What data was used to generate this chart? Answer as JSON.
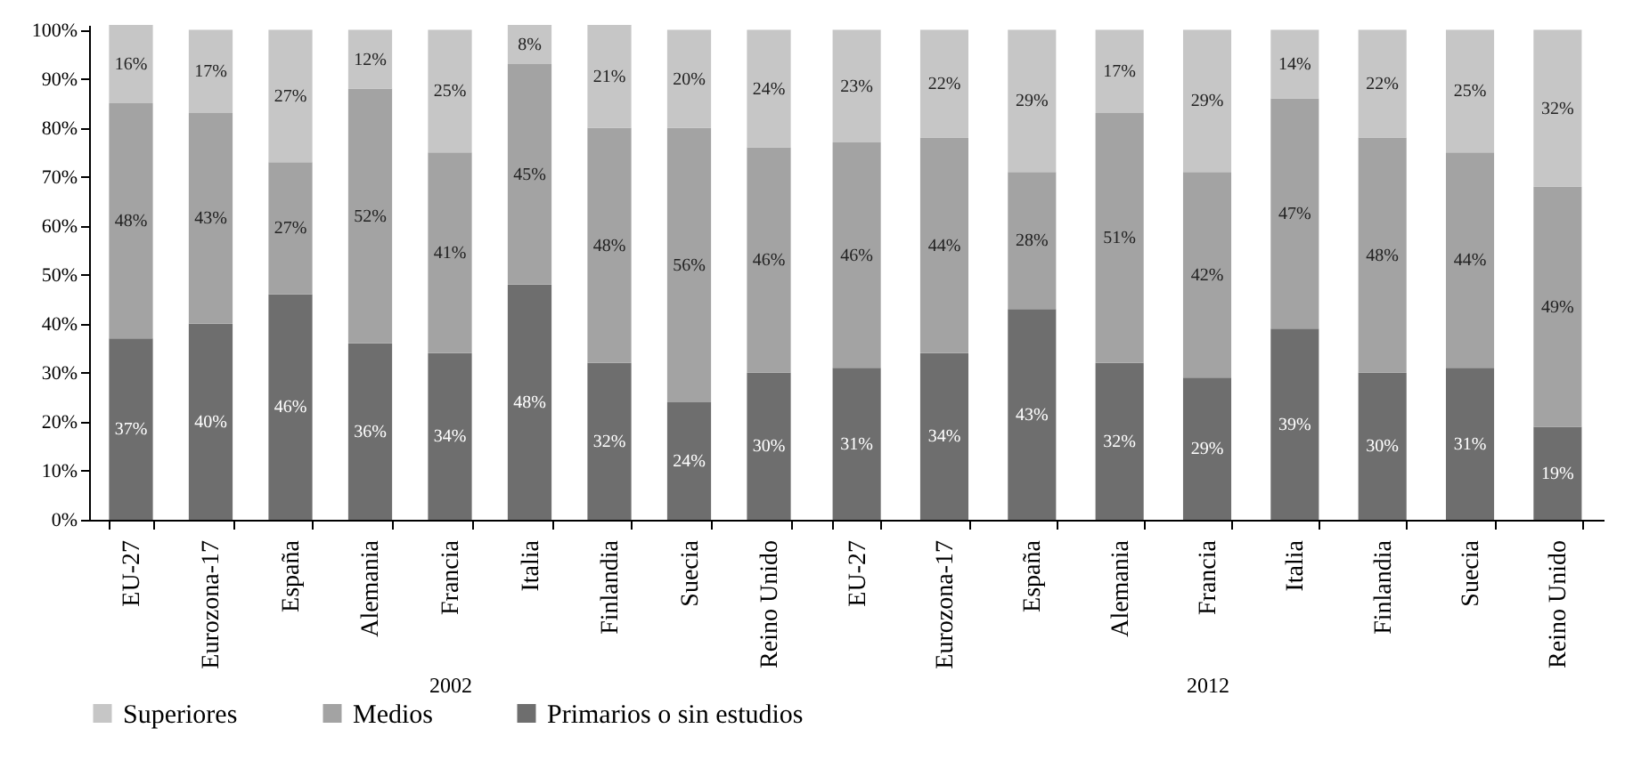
{
  "chart_data": [
    {
      "type": "bar",
      "stacked": true,
      "xlabel": "2002",
      "categories": [
        "EU-27",
        "Eurozona-17",
        "España",
        "Alemania",
        "Francia",
        "Italia",
        "Finlandia",
        "Suecia",
        "Reino Unido"
      ],
      "series": [
        {
          "name": "Primarios o sin estudios",
          "color": "#6e6e6e",
          "values": [
            37,
            40,
            46,
            36,
            34,
            48,
            32,
            24,
            30
          ],
          "value_labels": [
            "37%",
            "40%",
            "46%",
            "36%",
            "34%",
            "48%",
            "32%",
            "24%",
            "30%"
          ]
        },
        {
          "name": "Medios",
          "color": "#a3a3a3",
          "values": [
            48,
            43,
            27,
            52,
            41,
            45,
            48,
            56,
            46
          ],
          "value_labels": [
            "48%",
            "43%",
            "27%",
            "52%",
            "41%",
            "45%",
            "48%",
            "56%",
            "46%"
          ]
        },
        {
          "name": "Superiores",
          "color": "#c6c6c6",
          "values": [
            16,
            17,
            27,
            12,
            25,
            8,
            21,
            20,
            24
          ],
          "value_labels": [
            "16%",
            "17%",
            "27%",
            "12%",
            "25%",
            "8%",
            "21%",
            "20%",
            "24%"
          ]
        }
      ],
      "ylim": [
        0,
        101
      ],
      "yticks": [
        {
          "value": 0,
          "label": "0%"
        },
        {
          "value": 10,
          "label": "10%"
        },
        {
          "value": 20,
          "label": "20%"
        },
        {
          "value": 30,
          "label": "30%"
        },
        {
          "value": 40,
          "label": "40%"
        },
        {
          "value": 50,
          "label": "50%"
        },
        {
          "value": 60,
          "label": "60%"
        },
        {
          "value": 70,
          "label": "70%"
        },
        {
          "value": 80,
          "label": "80%"
        },
        {
          "value": 90,
          "label": "90%"
        },
        {
          "value": 100,
          "label": "100%"
        }
      ],
      "legend": "bottom"
    },
    {
      "type": "bar",
      "stacked": true,
      "xlabel": "2012",
      "categories": [
        "EU-27",
        "Eurozona-17",
        "España",
        "Alemania",
        "Francia",
        "Italia",
        "Finlandia",
        "Suecia",
        "Reino Unido"
      ],
      "series": [
        {
          "color": "#6e6e6e",
          "values": [
            31,
            34,
            43,
            32,
            29,
            39,
            30,
            31,
            19
          ],
          "value_labels": [
            "31%",
            "34%",
            "43%",
            "32%",
            "29%",
            "39%",
            "30%",
            "31%",
            "19%"
          ]
        },
        {
          "color": "#a3a3a3",
          "values": [
            46,
            44,
            28,
            51,
            42,
            47,
            48,
            44,
            49
          ],
          "value_labels": [
            "46%",
            "44%",
            "28%",
            "51%",
            "42%",
            "47%",
            "48%",
            "44%",
            "49%"
          ]
        },
        {
          "color": "#c6c6c6",
          "values": [
            23,
            22,
            29,
            17,
            29,
            14,
            22,
            25,
            32
          ],
          "value_labels": [
            "23%",
            "22%",
            "29%",
            "17%",
            "29%",
            "14%",
            "22%",
            "25%",
            "32%"
          ]
        }
      ],
      "ylim": [
        0,
        101
      ],
      "tick_labels": "x"
    }
  ]
}
